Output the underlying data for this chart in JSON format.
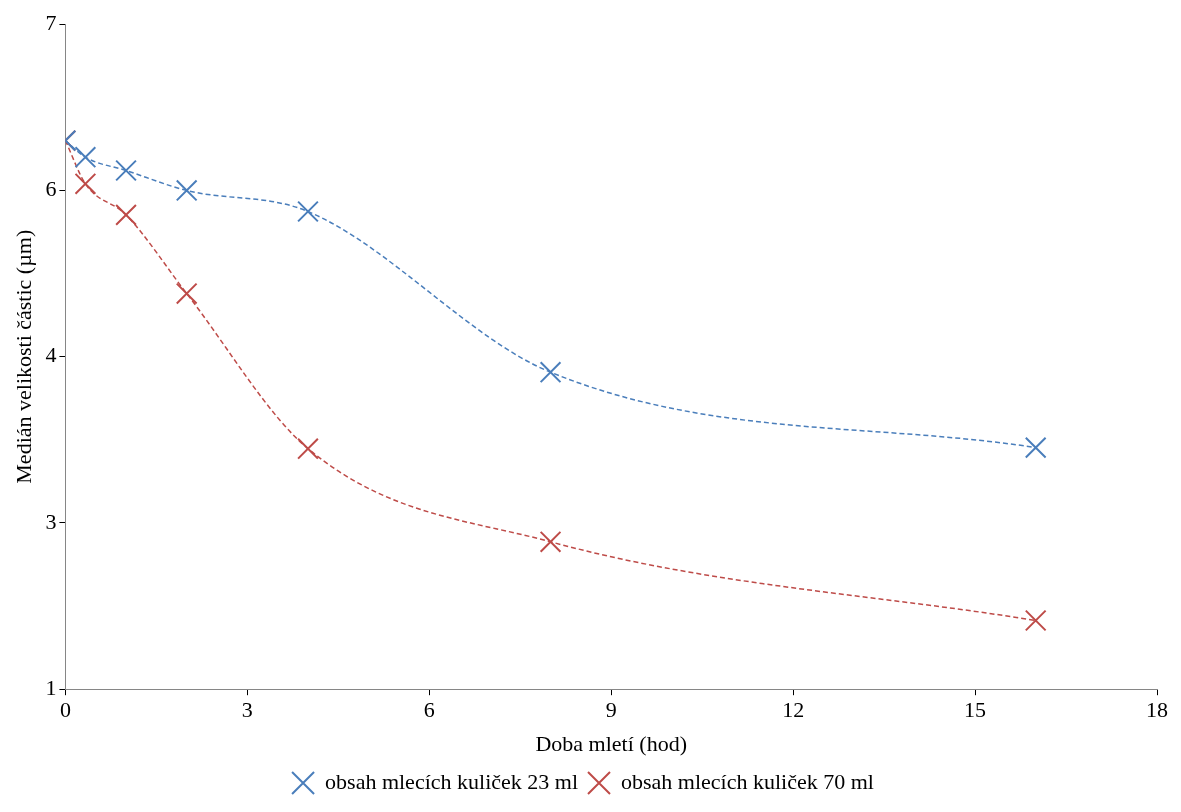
{
  "chart_data": {
    "type": "line",
    "xlabel": "Doba mletí (hod)",
    "ylabel": "Medián velikosti částic (µm)",
    "xlim": [
      0,
      18
    ],
    "xticks": [
      0,
      3,
      6,
      9,
      12,
      15,
      18
    ],
    "ylim": [
      1,
      7
    ],
    "yticks": [
      1,
      {
        "value": 2.5,
        "label": "3"
      },
      4,
      {
        "value": 5.5,
        "label": "6"
      },
      7
    ],
    "grid": false,
    "legend": "bottom",
    "line_style": "dashed",
    "series": [
      {
        "name": "obsah mlecích kuliček 23 ml",
        "color": "#4a7ebb",
        "marker": "cross",
        "x": [
          0,
          0.33,
          1,
          2,
          4,
          8,
          16
        ],
        "values": [
          5.95,
          5.8,
          5.68,
          5.5,
          5.31,
          3.86,
          3.18
        ]
      },
      {
        "name": "obsah mlecích kuliček 70 ml",
        "color": "#be4b48",
        "marker": "cross",
        "x": [
          0,
          0.33,
          1,
          2,
          4,
          8,
          16
        ],
        "values": [
          5.95,
          5.56,
          5.28,
          4.57,
          3.17,
          2.33,
          1.62
        ]
      }
    ]
  }
}
